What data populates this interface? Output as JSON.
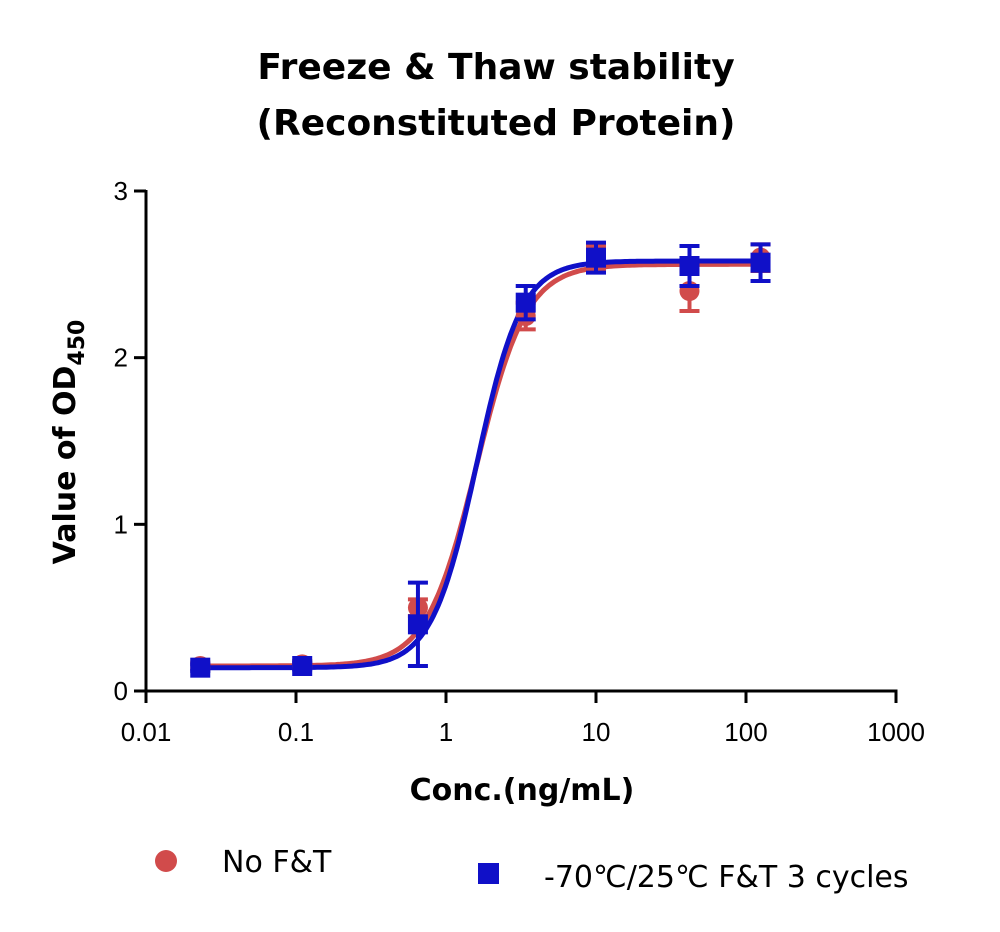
{
  "chart_data": {
    "type": "scatter",
    "title": [
      "Freeze & Thaw stability",
      "(Reconstituted Protein)"
    ],
    "xlabel": "Conc.(ng/mL)",
    "ylabel": "Value of OD",
    "ylabel_subscript": "450",
    "x_scale": "log",
    "xlim": [
      0.01,
      1000
    ],
    "ylim": [
      0,
      3
    ],
    "x_ticks": [
      0.01,
      0.1,
      1,
      10,
      100,
      1000
    ],
    "x_tick_labels": [
      "0.01",
      "0.1",
      "1",
      "10",
      "100",
      "1000"
    ],
    "y_ticks": [
      0,
      1,
      2,
      3
    ],
    "y_tick_labels": [
      "0",
      "1",
      "2",
      "3"
    ],
    "grid": false,
    "legend_position": "bottom",
    "series": [
      {
        "name": "No F&T",
        "color": "#d14b4b",
        "marker": "circle",
        "points": [
          {
            "x": 0.023,
            "y": 0.15,
            "err": 0.02
          },
          {
            "x": 0.11,
            "y": 0.16,
            "err": 0.02
          },
          {
            "x": 0.65,
            "y": 0.5,
            "err": 0.05
          },
          {
            "x": 3.4,
            "y": 2.25,
            "err": 0.08
          },
          {
            "x": 10,
            "y": 2.6,
            "err": 0.07
          },
          {
            "x": 42,
            "y": 2.4,
            "err": 0.12
          },
          {
            "x": 125,
            "y": 2.6,
            "err": 0.08
          }
        ],
        "fit": {
          "bottom": 0.15,
          "top": 2.56,
          "ec50": 1.6,
          "hill": 2.6
        }
      },
      {
        "name": "-70℃/25℃ F&T 3 cycles",
        "color": "#1010c8",
        "marker": "square",
        "points": [
          {
            "x": 0.023,
            "y": 0.14,
            "err": 0.02
          },
          {
            "x": 0.11,
            "y": 0.15,
            "err": 0.02
          },
          {
            "x": 0.65,
            "y": 0.4,
            "err": 0.25
          },
          {
            "x": 3.4,
            "y": 2.33,
            "err": 0.1
          },
          {
            "x": 10,
            "y": 2.6,
            "err": 0.09
          },
          {
            "x": 42,
            "y": 2.55,
            "err": 0.12
          },
          {
            "x": 125,
            "y": 2.57,
            "err": 0.11
          }
        ],
        "fit": {
          "bottom": 0.14,
          "top": 2.58,
          "ec50": 1.6,
          "hill": 2.9
        }
      }
    ]
  }
}
